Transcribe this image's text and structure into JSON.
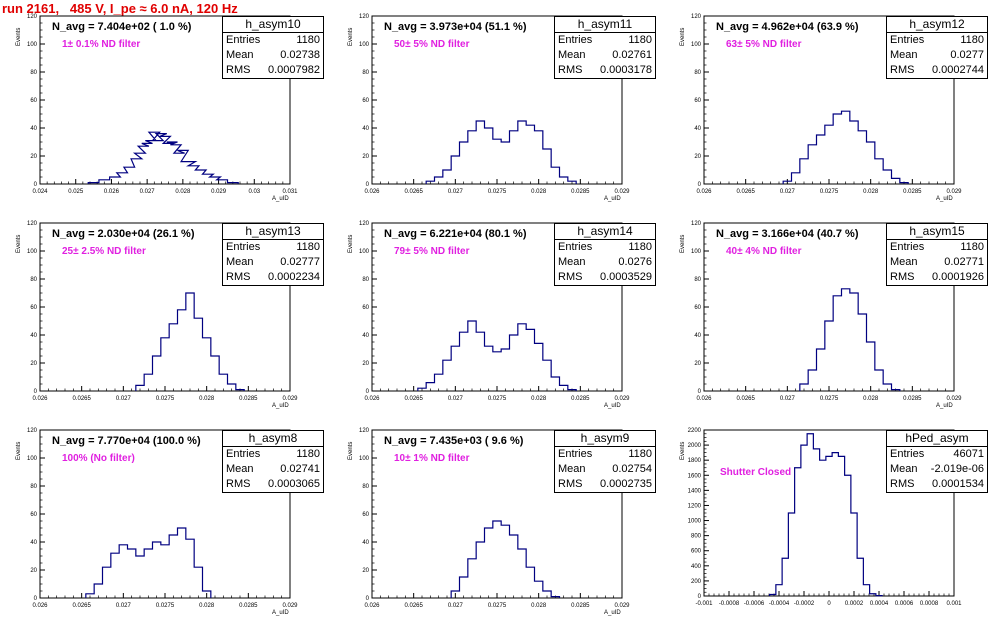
{
  "run_title": "run 2161,   485 V, I_pe ≈ 6.0 nA, 120 Hz",
  "chart_data": [
    {
      "type": "histogram",
      "name": "h_asym10",
      "n_avg": "N_avg = 7.404e+02 ( 1.0 %)",
      "filter": "1± 0.1% ND filter",
      "stats": {
        "entries": "1180",
        "mean": "0.02738",
        "rms": "0.0007982"
      },
      "xlim": [
        0.024,
        0.031
      ],
      "ylim": [
        0,
        120
      ],
      "xticks": [
        "0.024",
        "0.025",
        "0.026",
        "0.027",
        "0.028",
        "0.029",
        "0.03",
        "0.031"
      ],
      "yticks": [
        "0",
        "20",
        "40",
        "60",
        "80",
        "100",
        "120"
      ],
      "ylabel": "Events",
      "xlabel": "A_uID",
      "x": [
        0.0255,
        0.0258,
        0.0261,
        0.0263,
        0.0265,
        0.0267,
        0.0268,
        0.0269,
        0.027,
        0.0271,
        0.0272,
        0.0273,
        0.0274,
        0.0275,
        0.0276,
        0.0277,
        0.0278,
        0.0279,
        0.028,
        0.0281,
        0.0282,
        0.0283,
        0.0285,
        0.0287,
        0.0289,
        0.0291,
        0.0294
      ],
      "y": [
        1,
        3,
        5,
        8,
        12,
        18,
        22,
        27,
        29,
        31,
        37,
        31,
        36,
        34,
        29,
        30,
        28,
        22,
        24,
        16,
        16,
        13,
        10,
        7,
        5,
        3,
        1
      ]
    },
    {
      "type": "histogram",
      "name": "h_asym11",
      "n_avg": "N_avg = 3.973e+04 (51.1 %)",
      "filter": "50± 5% ND filter",
      "stats": {
        "entries": "1180",
        "mean": "0.02761",
        "rms": "0.0003178"
      },
      "xlim": [
        0.026,
        0.029
      ],
      "ylim": [
        0,
        120
      ],
      "xticks": [
        "0.026",
        "0.0265",
        "0.027",
        "0.0275",
        "0.028",
        "0.0285",
        "0.029"
      ],
      "yticks": [
        "0",
        "20",
        "40",
        "60",
        "80",
        "100",
        "120"
      ],
      "ylabel": "Events",
      "xlabel": "A_uID",
      "x": [
        0.0267,
        0.0268,
        0.0269,
        0.027,
        0.0271,
        0.0272,
        0.0273,
        0.0274,
        0.0275,
        0.0276,
        0.0277,
        0.0278,
        0.0279,
        0.028,
        0.0281,
        0.0282,
        0.0283,
        0.0284
      ],
      "y": [
        2,
        5,
        10,
        20,
        30,
        38,
        45,
        40,
        32,
        30,
        38,
        45,
        42,
        38,
        25,
        12,
        5,
        2
      ]
    },
    {
      "type": "histogram",
      "name": "h_asym12",
      "n_avg": "N_avg = 4.962e+04 (63.9 %)",
      "filter": "63± 5% ND filter",
      "stats": {
        "entries": "1180",
        "mean": "0.0277",
        "rms": "0.0002744"
      },
      "xlim": [
        0.026,
        0.029
      ],
      "ylim": [
        0,
        120
      ],
      "xticks": [
        "0.026",
        "0.0265",
        "0.027",
        "0.0275",
        "0.028",
        "0.0285",
        "0.029"
      ],
      "yticks": [
        "0",
        "20",
        "40",
        "60",
        "80",
        "100",
        "120"
      ],
      "ylabel": "Events",
      "xlabel": "A_uID",
      "x": [
        0.027,
        0.0271,
        0.0272,
        0.0273,
        0.0274,
        0.0275,
        0.0276,
        0.0277,
        0.0278,
        0.0279,
        0.028,
        0.0281,
        0.0282,
        0.0283,
        0.0284
      ],
      "y": [
        2,
        8,
        18,
        28,
        35,
        42,
        50,
        52,
        45,
        38,
        30,
        18,
        10,
        4,
        1
      ]
    },
    {
      "type": "histogram",
      "name": "h_asym13",
      "n_avg": "N_avg = 2.030e+04 (26.1 %)",
      "filter": "25± 2.5% ND filter",
      "stats": {
        "entries": "1180",
        "mean": "0.02777",
        "rms": "0.0002234"
      },
      "xlim": [
        0.026,
        0.029
      ],
      "ylim": [
        0,
        120
      ],
      "xticks": [
        "0.026",
        "0.0265",
        "0.027",
        "0.0275",
        "0.028",
        "0.0285",
        "0.029"
      ],
      "yticks": [
        "0",
        "20",
        "40",
        "60",
        "80",
        "100",
        "120"
      ],
      "ylabel": "Events",
      "xlabel": "A_uID",
      "x": [
        0.0272,
        0.0273,
        0.0274,
        0.0275,
        0.0276,
        0.0277,
        0.0278,
        0.0279,
        0.028,
        0.0281,
        0.0282,
        0.0283,
        0.0284
      ],
      "y": [
        4,
        12,
        25,
        38,
        48,
        58,
        70,
        52,
        38,
        25,
        12,
        5,
        1
      ]
    },
    {
      "type": "histogram",
      "name": "h_asym14",
      "n_avg": "N_avg = 6.221e+04 (80.1 %)",
      "filter": "79± 5% ND filter",
      "stats": {
        "entries": "1180",
        "mean": "0.0276",
        "rms": "0.0003529"
      },
      "xlim": [
        0.026,
        0.029
      ],
      "ylim": [
        0,
        120
      ],
      "xticks": [
        "0.026",
        "0.0265",
        "0.027",
        "0.0275",
        "0.028",
        "0.0285",
        "0.029"
      ],
      "yticks": [
        "0",
        "20",
        "40",
        "60",
        "80",
        "100",
        "120"
      ],
      "ylabel": "Events",
      "xlabel": "A_uID",
      "x": [
        0.0266,
        0.0267,
        0.0268,
        0.0269,
        0.027,
        0.0271,
        0.0272,
        0.0273,
        0.0274,
        0.0275,
        0.0276,
        0.0277,
        0.0278,
        0.0279,
        0.028,
        0.0281,
        0.0282,
        0.0283,
        0.0284
      ],
      "y": [
        2,
        6,
        12,
        22,
        32,
        42,
        50,
        42,
        32,
        28,
        30,
        40,
        48,
        44,
        34,
        22,
        10,
        4,
        1
      ]
    },
    {
      "type": "histogram",
      "name": "h_asym15",
      "n_avg": "N_avg = 3.166e+04 (40.7 %)",
      "filter": "40± 4% ND filter",
      "stats": {
        "entries": "1180",
        "mean": "0.02771",
        "rms": "0.0001926"
      },
      "xlim": [
        0.026,
        0.029
      ],
      "ylim": [
        0,
        120
      ],
      "xticks": [
        "0.026",
        "0.0265",
        "0.027",
        "0.0275",
        "0.028",
        "0.0285",
        "0.029"
      ],
      "yticks": [
        "0",
        "20",
        "40",
        "60",
        "80",
        "100",
        "120"
      ],
      "ylabel": "Events",
      "xlabel": "A_uID",
      "x": [
        0.0272,
        0.0273,
        0.0274,
        0.0275,
        0.0276,
        0.0277,
        0.0278,
        0.0279,
        0.028,
        0.0281,
        0.0282,
        0.0283
      ],
      "y": [
        5,
        15,
        30,
        50,
        68,
        73,
        70,
        55,
        35,
        15,
        5,
        1
      ]
    },
    {
      "type": "histogram",
      "name": "h_asym8",
      "n_avg": "N_avg = 7.770e+04 (100.0 %)",
      "filter": "100% (No filter)",
      "stats": {
        "entries": "1180",
        "mean": "0.02741",
        "rms": "0.0003065"
      },
      "xlim": [
        0.026,
        0.029
      ],
      "ylim": [
        0,
        120
      ],
      "xticks": [
        "0.026",
        "0.0265",
        "0.027",
        "0.0275",
        "0.028",
        "0.0285",
        "0.029"
      ],
      "yticks": [
        "0",
        "20",
        "40",
        "60",
        "80",
        "100",
        "120"
      ],
      "ylabel": "Events",
      "xlabel": "A_uID",
      "x": [
        0.0266,
        0.0267,
        0.0268,
        0.0269,
        0.027,
        0.0271,
        0.0272,
        0.0273,
        0.0274,
        0.0275,
        0.0276,
        0.0277,
        0.0278,
        0.0279,
        0.028
      ],
      "y": [
        3,
        10,
        22,
        32,
        38,
        35,
        30,
        35,
        40,
        38,
        45,
        50,
        42,
        22,
        5
      ]
    },
    {
      "type": "histogram",
      "name": "h_asym9",
      "n_avg": "N_avg = 7.435e+03 ( 9.6 %)",
      "filter": "10± 1% ND filter",
      "stats": {
        "entries": "1180",
        "mean": "0.02754",
        "rms": "0.0002735"
      },
      "xlim": [
        0.026,
        0.029
      ],
      "ylim": [
        0,
        120
      ],
      "xticks": [
        "0.026",
        "0.0265",
        "0.027",
        "0.0275",
        "0.028",
        "0.0285",
        "0.029"
      ],
      "yticks": [
        "0",
        "20",
        "40",
        "60",
        "80",
        "100",
        "120"
      ],
      "ylabel": "Events",
      "xlabel": "A_uID",
      "x": [
        0.027,
        0.0271,
        0.0272,
        0.0273,
        0.0274,
        0.0275,
        0.0276,
        0.0277,
        0.0278,
        0.0279,
        0.028,
        0.0281,
        0.0282
      ],
      "y": [
        5,
        15,
        28,
        40,
        50,
        55,
        52,
        45,
        35,
        22,
        12,
        5,
        1
      ]
    },
    {
      "type": "histogram",
      "name": "hPed_asym",
      "n_avg": "",
      "filter": "Shutter Closed",
      "stats": {
        "entries": "46071",
        "mean": "-2.019e-06",
        "rms": "0.0001534"
      },
      "xlim": [
        -0.001,
        0.001
      ],
      "ylim": [
        0,
        2200
      ],
      "xticks": [
        "-0.001",
        "-0.0008",
        "-0.0006",
        "-0.0004",
        "-0.0002",
        "0",
        "0.0002",
        "0.0004",
        "0.0006",
        "0.0008",
        "0.001"
      ],
      "yticks": [
        "0",
        "200",
        "400",
        "600",
        "800",
        "1000",
        "1200",
        "1400",
        "1600",
        "1800",
        "2000",
        "2200"
      ],
      "ylabel": "Events",
      "xlabel": "",
      "x": [
        -0.00045,
        -0.0004,
        -0.00035,
        -0.0003,
        -0.00025,
        -0.0002,
        -0.00015,
        -0.0001,
        -5e-05,
        0,
        5e-05,
        0.0001,
        0.00015,
        0.0002,
        0.00025,
        0.0003,
        0.00035,
        0.0004
      ],
      "y": [
        20,
        150,
        500,
        1100,
        1700,
        2000,
        2150,
        1950,
        1800,
        1850,
        1900,
        1850,
        1600,
        1100,
        500,
        150,
        30,
        5
      ]
    }
  ]
}
